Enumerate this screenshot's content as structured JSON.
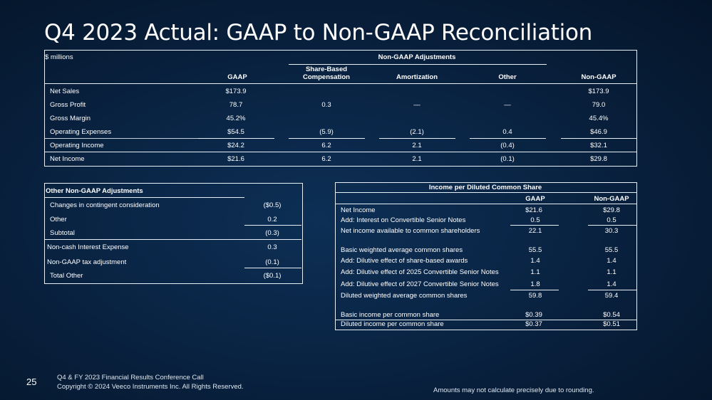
{
  "title": "Q4 2023 Actual: GAAP to Non-GAAP Reconciliation",
  "main_table": {
    "units": "$ millions",
    "group_header": "Non-GAAP Adjustments",
    "columns": {
      "gaap": "GAAP",
      "sbc_line1": "Share-Based",
      "sbc_line2": "Compensation",
      "amortization": "Amortization",
      "other": "Other",
      "non_gaap": "Non-GAAP"
    },
    "rows": [
      {
        "label": "Net Sales",
        "gaap": "$173.9",
        "sbc": "",
        "amort": "",
        "other": "",
        "non_gaap": "$173.9"
      },
      {
        "label": "Gross Profit",
        "gaap": "78.7",
        "sbc": "0.3",
        "amort": "—",
        "other": "—",
        "non_gaap": "79.0"
      },
      {
        "label": "Gross Margin",
        "gaap": "45.2%",
        "sbc": "",
        "amort": "",
        "other": "",
        "non_gaap": "45.4%"
      },
      {
        "label": "Operating Expenses",
        "gaap": "$54.5",
        "sbc": "(5.9)",
        "amort": "(2.1)",
        "other": "0.4",
        "non_gaap": "$46.9"
      },
      {
        "label": "Operating Income",
        "gaap": "$24.2",
        "sbc": "6.2",
        "amort": "2.1",
        "other": "(0.4)",
        "non_gaap": "$32.1"
      },
      {
        "label": "Net Income",
        "gaap": "$21.6",
        "sbc": "6.2",
        "amort": "2.1",
        "other": "(0.1)",
        "non_gaap": "$29.8"
      }
    ]
  },
  "other_table": {
    "header": "Other Non-GAAP Adjustments",
    "rows": [
      {
        "label": "Changes in contingent consideration",
        "value": "($0.5)"
      },
      {
        "label": "Other",
        "value": "0.2"
      },
      {
        "label": "Subtotal",
        "value": "(0.3)"
      },
      {
        "label": "Non-cash Interest Expense",
        "value": "0.3"
      },
      {
        "label": "Non-GAAP tax adjustment",
        "value": "(0.1)"
      },
      {
        "label": "Total Other",
        "value": "($0.1)"
      }
    ]
  },
  "eps_table": {
    "header": "Income per Diluted Common Share",
    "col_gaap": "GAAP",
    "col_non_gaap": "Non-GAAP",
    "rows": [
      {
        "label": "Net Income",
        "gaap": "$21.6",
        "non_gaap": "$29.8"
      },
      {
        "label": "Add: Interest on Convertible Senior Notes",
        "gaap": "0.5",
        "non_gaap": "0.5"
      },
      {
        "label": "Net income available to common shareholders",
        "gaap": "22.1",
        "non_gaap": "30.3"
      },
      {
        "label": "Basic weighted average common shares",
        "gaap": "55.5",
        "non_gaap": "55.5"
      },
      {
        "label": "Add: Dilutive effect of share-based awards",
        "gaap": "1.4",
        "non_gaap": "1.4"
      },
      {
        "label": "Add: Dilutive effect of 2025 Convertible Senior Notes",
        "gaap": "1.1",
        "non_gaap": "1.1"
      },
      {
        "label": "Add: Dilutive effect of 2027 Convertible Senior Notes",
        "gaap": "1.8",
        "non_gaap": "1.4"
      },
      {
        "label": "Diluted weighted average common shares",
        "gaap": "59.8",
        "non_gaap": "59.4"
      },
      {
        "label": "Basic income per common share",
        "gaap": "$0.39",
        "non_gaap": "$0.54"
      },
      {
        "label": "Diluted income per common share",
        "gaap": "$0.37",
        "non_gaap": "$0.51"
      }
    ]
  },
  "footer": {
    "page_number": "25",
    "line1": "Q4 & FY 2023 Financial Results Conference Call",
    "line2": "Copyright © 2024 Veeco Instruments Inc. All Rights Reserved.",
    "note": "Amounts may not calculate precisely due to rounding."
  }
}
